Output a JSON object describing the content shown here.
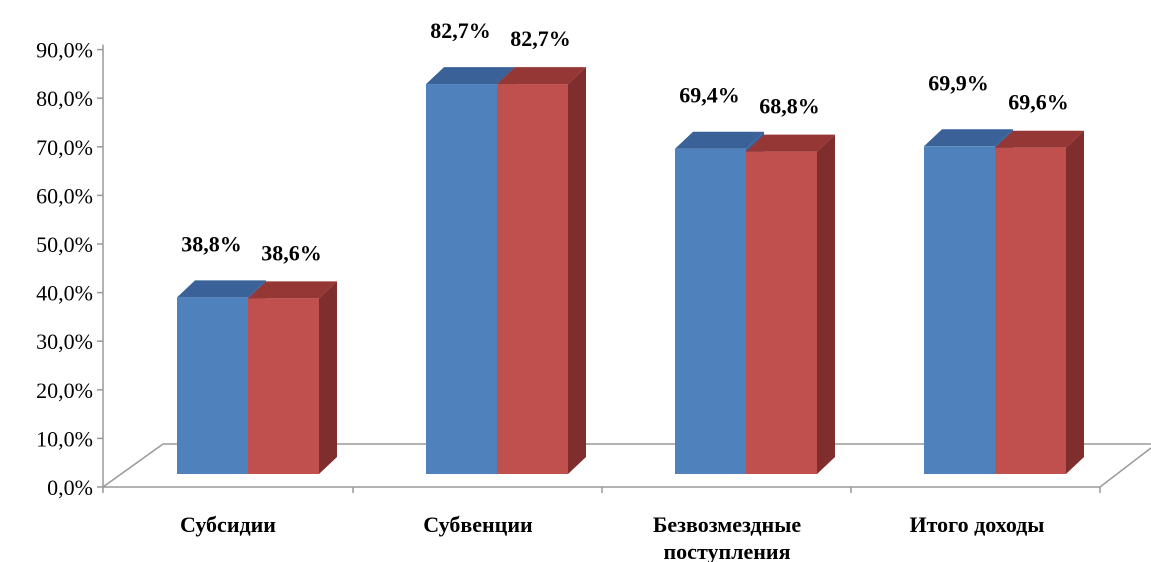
{
  "chart_data": {
    "type": "bar",
    "title": "",
    "xlabel": "",
    "ylabel": "",
    "ylim": [
      0,
      90
    ],
    "y_tick_step": 10,
    "y_tick_labels": [
      "0,0%",
      "10,0%",
      "20,0%",
      "30,0%",
      "40,0%",
      "50,0%",
      "60,0%",
      "70,0%",
      "80,0%",
      "90,0%"
    ],
    "categories": [
      [
        "Субсидии"
      ],
      [
        "Субвенции"
      ],
      [
        "Безвозмездные",
        "поступления"
      ],
      [
        "Итого доходы"
      ]
    ],
    "series": [
      {
        "values": [
          38.8,
          82.7,
          69.4,
          69.9
        ],
        "labels": [
          "38,8%",
          "82,7%",
          "69,4%",
          "69,9%"
        ],
        "color": "#4F81BD",
        "top_color": "#3A6298",
        "side_color": "#3A6298"
      },
      {
        "values": [
          38.6,
          82.7,
          68.8,
          69.6
        ],
        "labels": [
          "38,6%",
          "82,7%",
          "68,8%",
          "69,6%"
        ],
        "color": "#C0504D",
        "top_color": "#953735",
        "side_color": "#7F2E2D"
      }
    ],
    "style": "3d-clustered-column",
    "grid": false,
    "legend": "none"
  }
}
